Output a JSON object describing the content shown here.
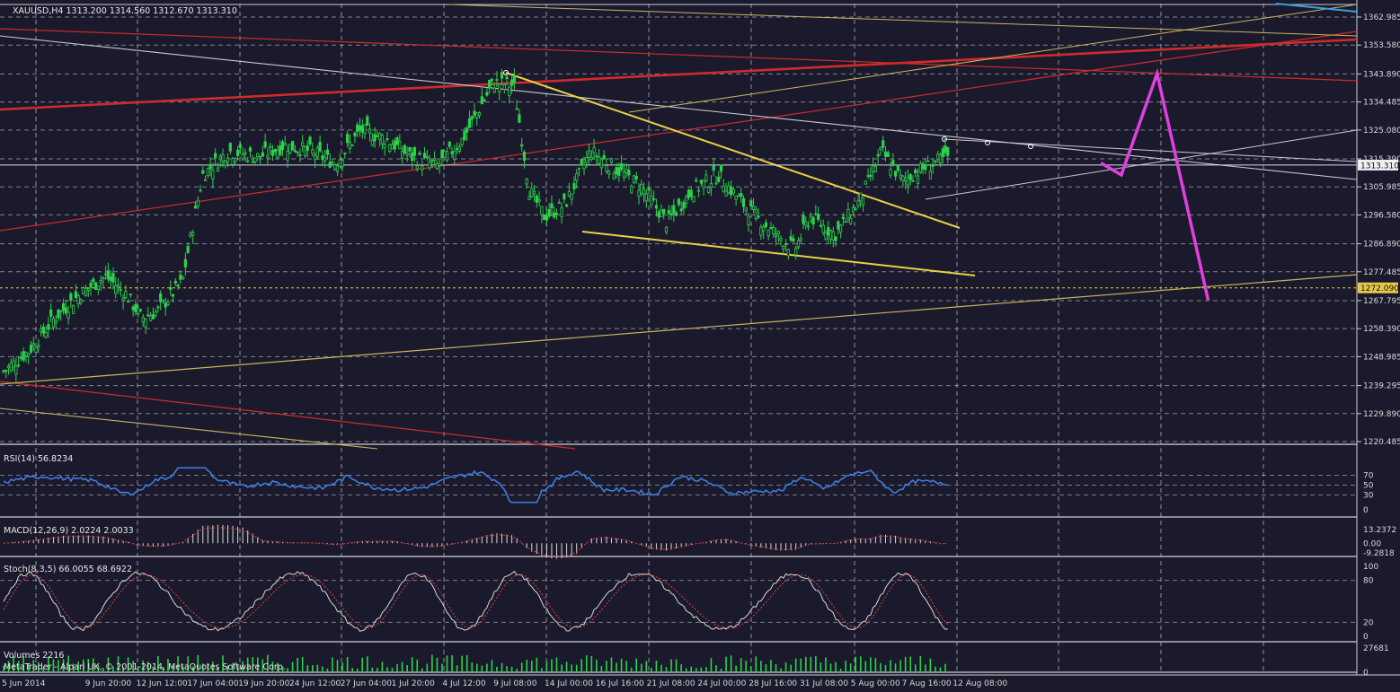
{
  "symbol_header": "XAUUSD,H4  1313.200 1314.560 1312.670 1313.310",
  "colors": {
    "background": "#1b1a2c",
    "grid": "#b8b8c8",
    "candle": "#2bd24a",
    "rsi": "#3b7de0",
    "forecast": "#e040e0",
    "wedge": "#e8d045",
    "trend_red": "#d02a2a",
    "channel_white": "#c8c8d0",
    "channel_yellow": "#c9b560",
    "volume": "#2bd24a",
    "price_tag": "#f0f0f0",
    "level_tag": "#e8c84a"
  },
  "chart_data": [
    {
      "type": "line",
      "title": "XAUUSD,H4  1313.200 1314.560 1312.670 1313.310",
      "x": [
        "5 Jun 2014",
        "9 Jun 20:00",
        "12 Jun 12:00",
        "17 Jun 04:00",
        "19 Jun 20:00",
        "24 Jun 12:00",
        "27 Jun 04:00",
        "1 Jul 20:00",
        "4 Jul 12:00",
        "9 Jul 08:00",
        "14 Jul 00:00",
        "16 Jul 16:00",
        "21 Jul 08:00",
        "24 Jul 00:00",
        "28 Jul 16:00",
        "31 Jul 08:00",
        "5 Aug 00:00",
        "7 Aug 16:00",
        "12 Aug 08:00"
      ],
      "price_path": [
        [
          0,
          1244
        ],
        [
          0.5,
          1251
        ],
        [
          1,
          1262
        ],
        [
          1.5,
          1270
        ],
        [
          2,
          1276
        ],
        [
          2.4,
          1270
        ],
        [
          2.7,
          1262
        ],
        [
          3,
          1264
        ],
        [
          3.5,
          1274
        ],
        [
          3.9,
          1310
        ],
        [
          4.4,
          1318
        ],
        [
          5,
          1316
        ],
        [
          5.5,
          1320
        ],
        [
          6,
          1318
        ],
        [
          6.5,
          1314
        ],
        [
          7,
          1325
        ],
        [
          7.5,
          1322
        ],
        [
          8,
          1316
        ],
        [
          8.5,
          1313
        ],
        [
          9,
          1322
        ],
        [
          9.6,
          1341
        ],
        [
          10,
          1340
        ],
        [
          10.3,
          1305
        ],
        [
          10.6,
          1296
        ],
        [
          11,
          1300
        ],
        [
          11.5,
          1318
        ],
        [
          12,
          1312
        ],
        [
          12.5,
          1306
        ],
        [
          13,
          1294
        ],
        [
          13.5,
          1305
        ],
        [
          14,
          1310
        ],
        [
          14.5,
          1300
        ],
        [
          15,
          1292
        ],
        [
          15.5,
          1285
        ],
        [
          15.8,
          1296
        ],
        [
          16.3,
          1290
        ],
        [
          16.8,
          1302
        ],
        [
          17.2,
          1318
        ],
        [
          17.6,
          1308
        ],
        [
          18,
          1312
        ],
        [
          18.5,
          1316
        ]
      ],
      "yticks": [
        "1362.985",
        "1353.580",
        "1343.890",
        "1334.485",
        "1325.080",
        "1315.390",
        "1305.985",
        "1296.580",
        "1286.890",
        "1277.485",
        "1267.795",
        "1258.390",
        "1248.985",
        "1239.295",
        "1229.890",
        "1220.485"
      ],
      "ylim": [
        1220.485,
        1362.985
      ],
      "current_price": "1313.310",
      "level_price": "1272.090",
      "forecast_path": [
        [
          21.5,
          1314
        ],
        [
          21.9,
          1310
        ],
        [
          22.6,
          1344
        ],
        [
          23.6,
          1268
        ]
      ]
    },
    {
      "type": "line",
      "title": "RSI(14) 56.8234",
      "yticks": [
        "70",
        "50",
        "30",
        "0"
      ],
      "ylim": [
        0,
        100
      ],
      "levels": [
        70,
        50,
        30
      ]
    },
    {
      "type": "bar",
      "title": "MACD(12,26,9) 2.0224 2.0033",
      "yticks": [
        "13.2372",
        "0.00",
        "-9.2818"
      ],
      "ylim": [
        -9.2818,
        13.2372
      ]
    },
    {
      "type": "line",
      "title": "Stoch(8,3,5) 66.0055 68.6922",
      "yticks": [
        "100",
        "80",
        "20",
        "0"
      ],
      "ylim": [
        0,
        100
      ],
      "levels": [
        80,
        20
      ]
    },
    {
      "type": "bar",
      "title": "Volumes 2216",
      "yticks": [
        "27681",
        "0"
      ],
      "ylim": [
        0,
        27681
      ]
    }
  ],
  "footer_credit": "MetaTrader - Alpari UK, © 2001-2014, MetaQuotes Software Corp."
}
